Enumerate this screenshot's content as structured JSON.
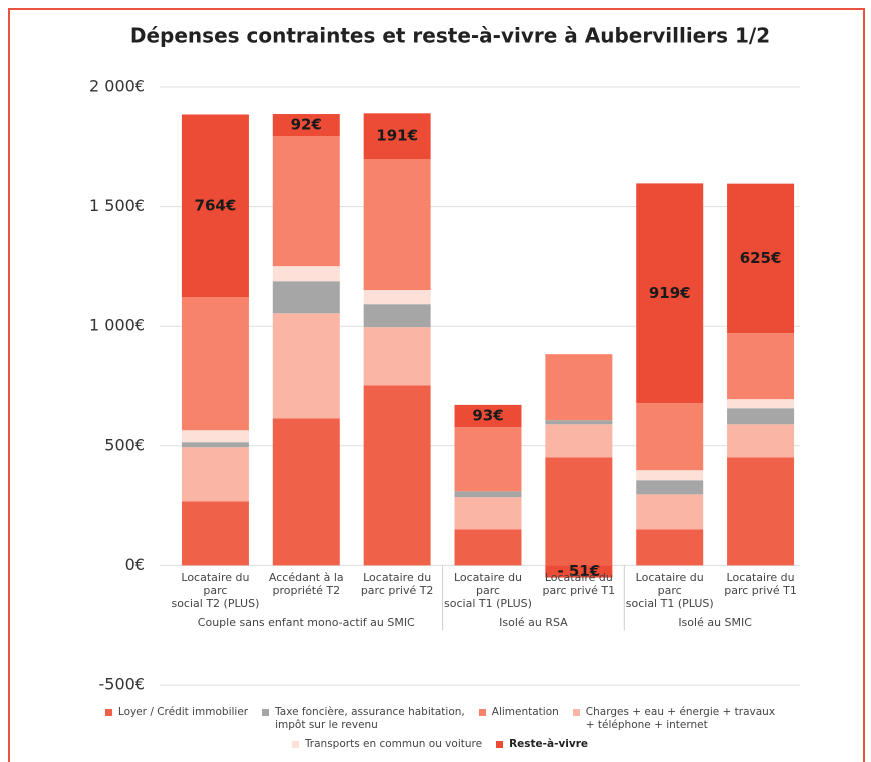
{
  "chart_data": {
    "type": "stacked_bar",
    "title": "Dépenses contraintes et reste-à-vivre à Aubervilliers 1/2",
    "groups": [
      {
        "label": "Couple sans enfant mono-actif au SMIC",
        "categories": [
          "Locataire du parc\nsocial T2 (PLUS)",
          "Accédant à la\npropriété T2",
          "Locataire du\nparc privé T2"
        ]
      },
      {
        "label": "Isolé au RSA",
        "categories": [
          "Locataire du parc\nsocial T1 (PLUS)",
          "Locataire du\nparc privé T1"
        ]
      },
      {
        "label": "Isolé au SMIC",
        "categories": [
          "Locataire du parc\nsocial T1 (PLUS)",
          "Locataire du\nparc privé T1"
        ]
      }
    ],
    "series": [
      {
        "name": "Loyer / Crédit immobilier",
        "color": "#f0614a",
        "values": [
          268,
          615,
          753,
          151,
          452,
          151,
          452
        ]
      },
      {
        "name": "Taxe foncière, assurance habitation,\nimpôt sur le revenu",
        "color": "#a6a6a6",
        "values": [
          21,
          134,
          96,
          25,
          17,
          59,
          67
        ]
      },
      {
        "name": "Alimentation",
        "color": "#f7836b",
        "values": [
          556,
          544,
          548,
          268,
          276,
          280,
          276
        ]
      },
      {
        "name": "Charges + eau + énergie + travaux\n+ téléphone + internet",
        "color": "#fbb5a5",
        "values": [
          226,
          439,
          243,
          134,
          138,
          146,
          138
        ]
      },
      {
        "name": "Transports en commun ou voiture",
        "color": "#fde0d8",
        "values": [
          50,
          63,
          59,
          0,
          0,
          42,
          38
        ]
      },
      {
        "name": "Reste-à-vivre",
        "color": "#ec4b36",
        "values": [
          764,
          92,
          191,
          93,
          -51,
          919,
          625
        ],
        "value_labels": [
          "764€",
          "92€",
          "191€",
          "93€",
          "- 51€",
          "919€",
          "625€"
        ]
      }
    ],
    "ylim": [
      -500,
      2000
    ],
    "yticks": [
      {
        "value": -500,
        "label": "-500€"
      },
      {
        "value": 0,
        "label": "0€"
      },
      {
        "value": 500,
        "label": "500€"
      },
      {
        "value": 1000,
        "label": "1 000€"
      },
      {
        "value": 1500,
        "label": "1 500€"
      },
      {
        "value": 2000,
        "label": "2 000€"
      }
    ],
    "grid": true
  }
}
